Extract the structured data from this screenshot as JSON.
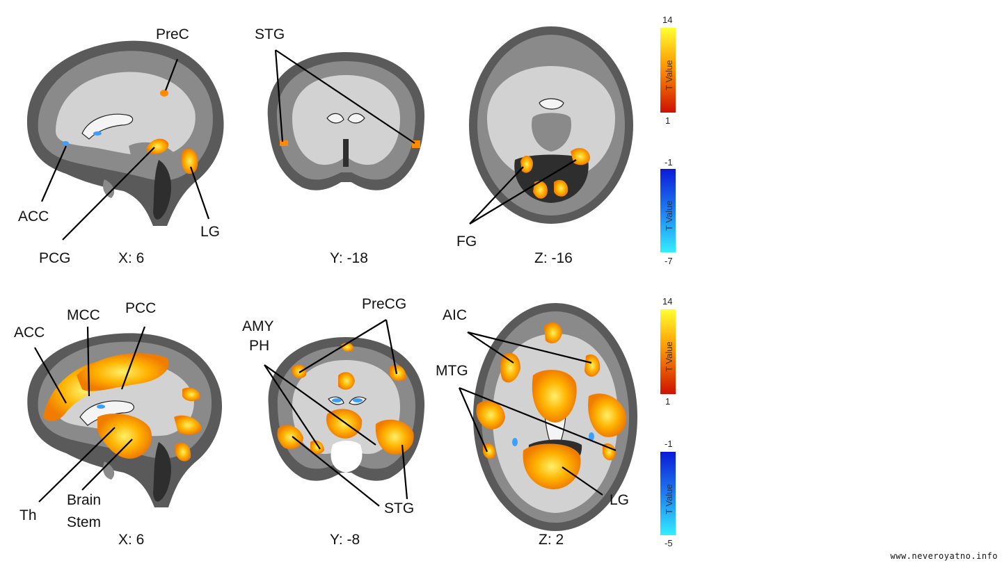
{
  "rows": [
    {
      "panels": [
        {
          "view": "sagittal",
          "coordinate": "X: 6",
          "labels": [
            "PreC",
            "ACC",
            "PCG",
            "LG"
          ]
        },
        {
          "view": "coronal",
          "coordinate": "Y: -18",
          "labels": [
            "STG"
          ]
        },
        {
          "view": "axial",
          "coordinate": "Z: -16",
          "labels": [
            "FG"
          ]
        }
      ],
      "colorbars": [
        {
          "title": "T Value",
          "max": "14",
          "min": "1",
          "colors": [
            "#ffff33",
            "#ff9900",
            "#cc1100"
          ]
        },
        {
          "title": "T Value",
          "max": "-1",
          "min": "-7",
          "colors": [
            "#0a1ad6",
            "#1e7df0",
            "#33eeff"
          ]
        }
      ]
    },
    {
      "panels": [
        {
          "view": "sagittal",
          "coordinate": "X: 6",
          "labels": [
            "ACC",
            "MCC",
            "PCC",
            "Th",
            "Brain",
            "Stem"
          ]
        },
        {
          "view": "coronal",
          "coordinate": "Y: -8",
          "labels": [
            "AMY",
            "PH",
            "PreCG",
            "STG"
          ]
        },
        {
          "view": "axial",
          "coordinate": "Z: 2",
          "labels": [
            "AIC",
            "MTG",
            "LG"
          ]
        }
      ],
      "colorbars": [
        {
          "title": "T Value",
          "max": "14",
          "min": "1",
          "colors": [
            "#ffff33",
            "#ff9900",
            "#cc1100"
          ]
        },
        {
          "title": "T Value",
          "max": "-1",
          "min": "-5",
          "colors": [
            "#0a1ad6",
            "#1e7df0",
            "#33eeff"
          ]
        }
      ]
    }
  ],
  "watermark": "www.neveroyatno.info",
  "colors": {
    "activation_hot": "#ffcc00",
    "activation_core": "#ff8c00",
    "deactivation": "#3aa0ff"
  }
}
